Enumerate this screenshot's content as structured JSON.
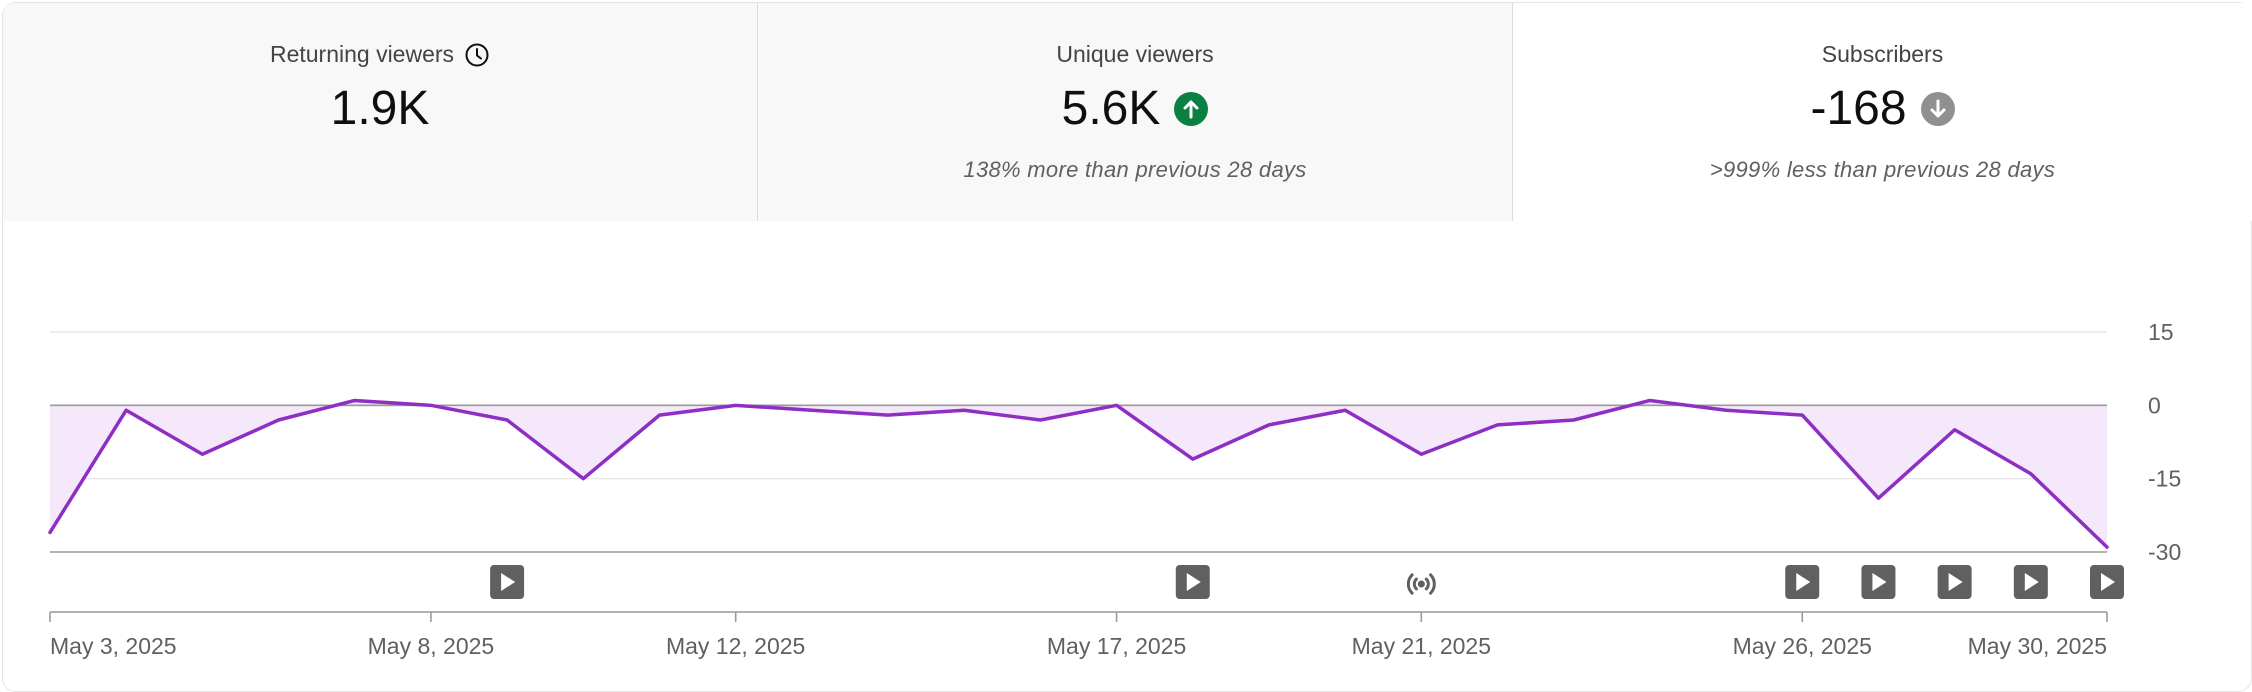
{
  "metrics": [
    {
      "title": "Returning viewers",
      "value": "1.9K",
      "comparison": "",
      "icon": "clock-icon"
    },
    {
      "title": "Unique viewers",
      "value": "5.6K",
      "comparison": "138% more than previous 28 days",
      "icon": "arrow-up-circle-icon",
      "badge_color": "#0b8043"
    },
    {
      "title": "Subscribers",
      "value": "-168",
      "comparison": ">999% less than previous 28 days",
      "icon": "arrow-down-circle-icon",
      "badge_color": "#909090"
    }
  ],
  "colors": {
    "line": "#8e2fc4",
    "fill": "#f5e8fa",
    "grid": "#e2e2e2",
    "zero": "#9a9a9a",
    "marker": "#606060"
  },
  "chart_data": {
    "type": "area",
    "title": "Subscribers",
    "xlabel": "",
    "ylabel": "",
    "ylim": [
      -30,
      15
    ],
    "yticks": [
      15,
      0,
      -15,
      -30
    ],
    "ytick_labels": [
      "15",
      "0",
      "-15",
      "-30"
    ],
    "x": [
      "May 3, 2025",
      "May 4, 2025",
      "May 5, 2025",
      "May 6, 2025",
      "May 7, 2025",
      "May 8, 2025",
      "May 9, 2025",
      "May 10, 2025",
      "May 11, 2025",
      "May 12, 2025",
      "May 13, 2025",
      "May 14, 2025",
      "May 15, 2025",
      "May 16, 2025",
      "May 17, 2025",
      "May 18, 2025",
      "May 19, 2025",
      "May 20, 2025",
      "May 21, 2025",
      "May 22, 2025",
      "May 23, 2025",
      "May 24, 2025",
      "May 25, 2025",
      "May 26, 2025",
      "May 27, 2025",
      "May 28, 2025",
      "May 29, 2025",
      "May 30, 2025"
    ],
    "series": [
      {
        "name": "Subscribers",
        "values": [
          -26,
          -1,
          -10,
          -3,
          1,
          0,
          -3,
          -15,
          -2,
          0,
          -1,
          -2,
          -1,
          -3,
          0,
          -11,
          -4,
          -1,
          -10,
          -4,
          -3,
          1,
          -1,
          -2,
          -19,
          -5,
          -14,
          -29
        ]
      }
    ],
    "xtick_labels": [
      {
        "index": 0,
        "label": "May 3, 2025"
      },
      {
        "index": 5,
        "label": "May 8, 2025"
      },
      {
        "index": 9,
        "label": "May 12, 2025"
      },
      {
        "index": 14,
        "label": "May 17, 2025"
      },
      {
        "index": 18,
        "label": "May 21, 2025"
      },
      {
        "index": 23,
        "label": "May 26, 2025"
      },
      {
        "index": 27,
        "label": "May 30, 2025"
      }
    ],
    "events": [
      {
        "index": 6,
        "type": "video"
      },
      {
        "index": 15,
        "type": "video"
      },
      {
        "index": 18,
        "type": "live"
      },
      {
        "index": 23,
        "type": "video"
      },
      {
        "index": 24,
        "type": "video"
      },
      {
        "index": 25,
        "type": "video"
      },
      {
        "index": 26,
        "type": "video"
      },
      {
        "index": 27,
        "type": "video"
      }
    ]
  }
}
